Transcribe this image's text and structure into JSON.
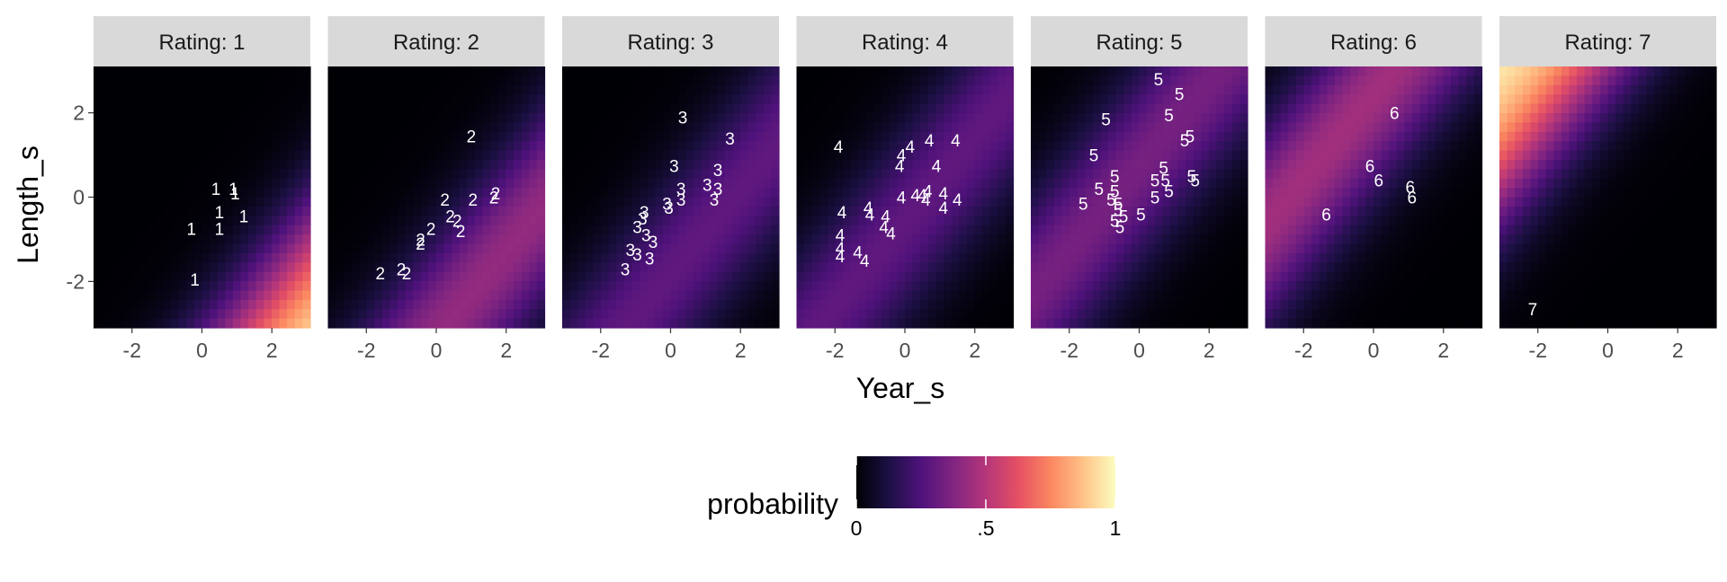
{
  "chart_data": {
    "type": "heatmap",
    "xlabel": "Year_s",
    "ylabel": "Length_s",
    "xlim": [
      -3.1,
      3.1
    ],
    "ylim": [
      -3.1,
      3.1
    ],
    "x_ticks": [
      -2,
      0,
      2
    ],
    "y_ticks": [
      -2,
      0,
      2
    ],
    "x_tick_labels": [
      "-2",
      "0",
      "2"
    ],
    "y_tick_labels": [
      "-2",
      "0",
      "2"
    ],
    "facet_prefix": "Rating: ",
    "legend": {
      "title": "probability",
      "position": "bottom",
      "ticks": [
        0,
        0.5,
        1
      ],
      "tick_labels": [
        "0",
        ".5",
        "1"
      ],
      "colormap": "magma"
    },
    "panels": [
      {
        "label": "Rating: 1",
        "rating": 1,
        "points": [
          {
            "x": 0.4,
            "y": 0.2,
            "label": "1"
          },
          {
            "x": 0.9,
            "y": 0.2,
            "label": "1"
          },
          {
            "x": 0.95,
            "y": 0.1,
            "label": "1"
          },
          {
            "x": 0.5,
            "y": -0.35,
            "label": "1"
          },
          {
            "x": 1.2,
            "y": -0.45,
            "label": "1"
          },
          {
            "x": -0.3,
            "y": -0.75,
            "label": "1"
          },
          {
            "x": 0.5,
            "y": -0.75,
            "label": "1"
          },
          {
            "x": -0.2,
            "y": -1.95,
            "label": "1"
          }
        ]
      },
      {
        "label": "Rating: 2",
        "rating": 2,
        "points": [
          {
            "x": 1.0,
            "y": 1.45,
            "label": "2"
          },
          {
            "x": 1.7,
            "y": 0.1,
            "label": "2"
          },
          {
            "x": 1.65,
            "y": 0.0,
            "label": "2"
          },
          {
            "x": 0.25,
            "y": -0.05,
            "label": "2"
          },
          {
            "x": 1.05,
            "y": -0.05,
            "label": "2"
          },
          {
            "x": 0.4,
            "y": -0.45,
            "label": "2"
          },
          {
            "x": 0.6,
            "y": -0.55,
            "label": "2"
          },
          {
            "x": -0.15,
            "y": -0.75,
            "label": "2"
          },
          {
            "x": 0.7,
            "y": -0.8,
            "label": "2"
          },
          {
            "x": -0.45,
            "y": -1.0,
            "label": "2"
          },
          {
            "x": -0.45,
            "y": -1.1,
            "label": "2"
          },
          {
            "x": -1.0,
            "y": -1.7,
            "label": "2"
          },
          {
            "x": -1.6,
            "y": -1.8,
            "label": "2"
          },
          {
            "x": -0.85,
            "y": -1.8,
            "label": "2"
          }
        ]
      },
      {
        "label": "Rating: 3",
        "rating": 3,
        "points": [
          {
            "x": 0.35,
            "y": 1.9,
            "label": "3"
          },
          {
            "x": 1.7,
            "y": 1.4,
            "label": "3"
          },
          {
            "x": 0.1,
            "y": 0.75,
            "label": "3"
          },
          {
            "x": 1.35,
            "y": 0.65,
            "label": "3"
          },
          {
            "x": 0.3,
            "y": 0.2,
            "label": "3"
          },
          {
            "x": 1.05,
            "y": 0.3,
            "label": "3"
          },
          {
            "x": 1.35,
            "y": 0.2,
            "label": "3"
          },
          {
            "x": -0.1,
            "y": -0.15,
            "label": "3"
          },
          {
            "x": 0.3,
            "y": -0.05,
            "label": "3"
          },
          {
            "x": 1.25,
            "y": -0.05,
            "label": "3"
          },
          {
            "x": -0.05,
            "y": -0.25,
            "label": "3"
          },
          {
            "x": -0.75,
            "y": -0.35,
            "label": "3"
          },
          {
            "x": -0.8,
            "y": -0.5,
            "label": "3"
          },
          {
            "x": -0.95,
            "y": -0.7,
            "label": "3"
          },
          {
            "x": -0.7,
            "y": -0.9,
            "label": "3"
          },
          {
            "x": -0.5,
            "y": -1.05,
            "label": "3"
          },
          {
            "x": -1.15,
            "y": -1.25,
            "label": "3"
          },
          {
            "x": -0.95,
            "y": -1.35,
            "label": "3"
          },
          {
            "x": -0.6,
            "y": -1.45,
            "label": "3"
          },
          {
            "x": -1.3,
            "y": -1.7,
            "label": "3"
          }
        ]
      },
      {
        "label": "Rating: 4",
        "rating": 4,
        "points": [
          {
            "x": -1.9,
            "y": 1.2,
            "label": "4"
          },
          {
            "x": 0.15,
            "y": 1.2,
            "label": "4"
          },
          {
            "x": 0.7,
            "y": 1.35,
            "label": "4"
          },
          {
            "x": 1.45,
            "y": 1.35,
            "label": "4"
          },
          {
            "x": -0.1,
            "y": 1.0,
            "label": "4"
          },
          {
            "x": -0.15,
            "y": 0.75,
            "label": "4"
          },
          {
            "x": 0.9,
            "y": 0.75,
            "label": "4"
          },
          {
            "x": -0.1,
            "y": 0.0,
            "label": "4"
          },
          {
            "x": 0.3,
            "y": 0.05,
            "label": "4"
          },
          {
            "x": 0.5,
            "y": 0.05,
            "label": "4"
          },
          {
            "x": 0.65,
            "y": 0.15,
            "label": "4"
          },
          {
            "x": 1.1,
            "y": 0.1,
            "label": "4"
          },
          {
            "x": 0.6,
            "y": -0.05,
            "label": "4"
          },
          {
            "x": 1.5,
            "y": -0.05,
            "label": "4"
          },
          {
            "x": 1.1,
            "y": -0.25,
            "label": "4"
          },
          {
            "x": -1.05,
            "y": -0.25,
            "label": "4"
          },
          {
            "x": -1.8,
            "y": -0.35,
            "label": "4"
          },
          {
            "x": -1.0,
            "y": -0.4,
            "label": "4"
          },
          {
            "x": -0.55,
            "y": -0.45,
            "label": "4"
          },
          {
            "x": -0.6,
            "y": -0.7,
            "label": "4"
          },
          {
            "x": -0.4,
            "y": -0.85,
            "label": "4"
          },
          {
            "x": -1.85,
            "y": -0.9,
            "label": "4"
          },
          {
            "x": -1.85,
            "y": -1.2,
            "label": "4"
          },
          {
            "x": -1.35,
            "y": -1.3,
            "label": "4"
          },
          {
            "x": -1.85,
            "y": -1.4,
            "label": "4"
          },
          {
            "x": -1.15,
            "y": -1.5,
            "label": "4"
          }
        ]
      },
      {
        "label": "Rating: 5",
        "rating": 5,
        "points": [
          {
            "x": 0.55,
            "y": 2.8,
            "label": "5"
          },
          {
            "x": 1.15,
            "y": 2.45,
            "label": "5"
          },
          {
            "x": -0.95,
            "y": 1.85,
            "label": "5"
          },
          {
            "x": 0.85,
            "y": 1.95,
            "label": "5"
          },
          {
            "x": 1.45,
            "y": 1.45,
            "label": "5"
          },
          {
            "x": 1.3,
            "y": 1.35,
            "label": "5"
          },
          {
            "x": -1.3,
            "y": 1.0,
            "label": "5"
          },
          {
            "x": 0.7,
            "y": 0.7,
            "label": "5"
          },
          {
            "x": -0.7,
            "y": 0.5,
            "label": "5"
          },
          {
            "x": 0.45,
            "y": 0.4,
            "label": "5"
          },
          {
            "x": 0.75,
            "y": 0.4,
            "label": "5"
          },
          {
            "x": 1.5,
            "y": 0.5,
            "label": "5"
          },
          {
            "x": 1.6,
            "y": 0.4,
            "label": "5"
          },
          {
            "x": -1.15,
            "y": 0.2,
            "label": "5"
          },
          {
            "x": -0.7,
            "y": 0.15,
            "label": "5"
          },
          {
            "x": 0.85,
            "y": 0.15,
            "label": "5"
          },
          {
            "x": -0.8,
            "y": -0.05,
            "label": "5"
          },
          {
            "x": -0.6,
            "y": -0.15,
            "label": "5"
          },
          {
            "x": 0.45,
            "y": 0.0,
            "label": "5"
          },
          {
            "x": -1.6,
            "y": -0.15,
            "label": "5"
          },
          {
            "x": -0.6,
            "y": -0.3,
            "label": "5"
          },
          {
            "x": -0.45,
            "y": -0.45,
            "label": "5"
          },
          {
            "x": 0.05,
            "y": -0.4,
            "label": "5"
          },
          {
            "x": -0.7,
            "y": -0.55,
            "label": "5"
          },
          {
            "x": -0.55,
            "y": -0.7,
            "label": "5"
          }
        ]
      },
      {
        "label": "Rating: 6",
        "rating": 6,
        "points": [
          {
            "x": 0.6,
            "y": 2.0,
            "label": "6"
          },
          {
            "x": -0.1,
            "y": 0.75,
            "label": "6"
          },
          {
            "x": 0.15,
            "y": 0.4,
            "label": "6"
          },
          {
            "x": 1.05,
            "y": 0.25,
            "label": "6"
          },
          {
            "x": 1.1,
            "y": 0.0,
            "label": "6"
          },
          {
            "x": -1.35,
            "y": -0.4,
            "label": "6"
          }
        ]
      },
      {
        "label": "Rating: 7",
        "rating": 7,
        "points": [
          {
            "x": -2.15,
            "y": -2.65,
            "label": "7"
          }
        ]
      }
    ]
  }
}
